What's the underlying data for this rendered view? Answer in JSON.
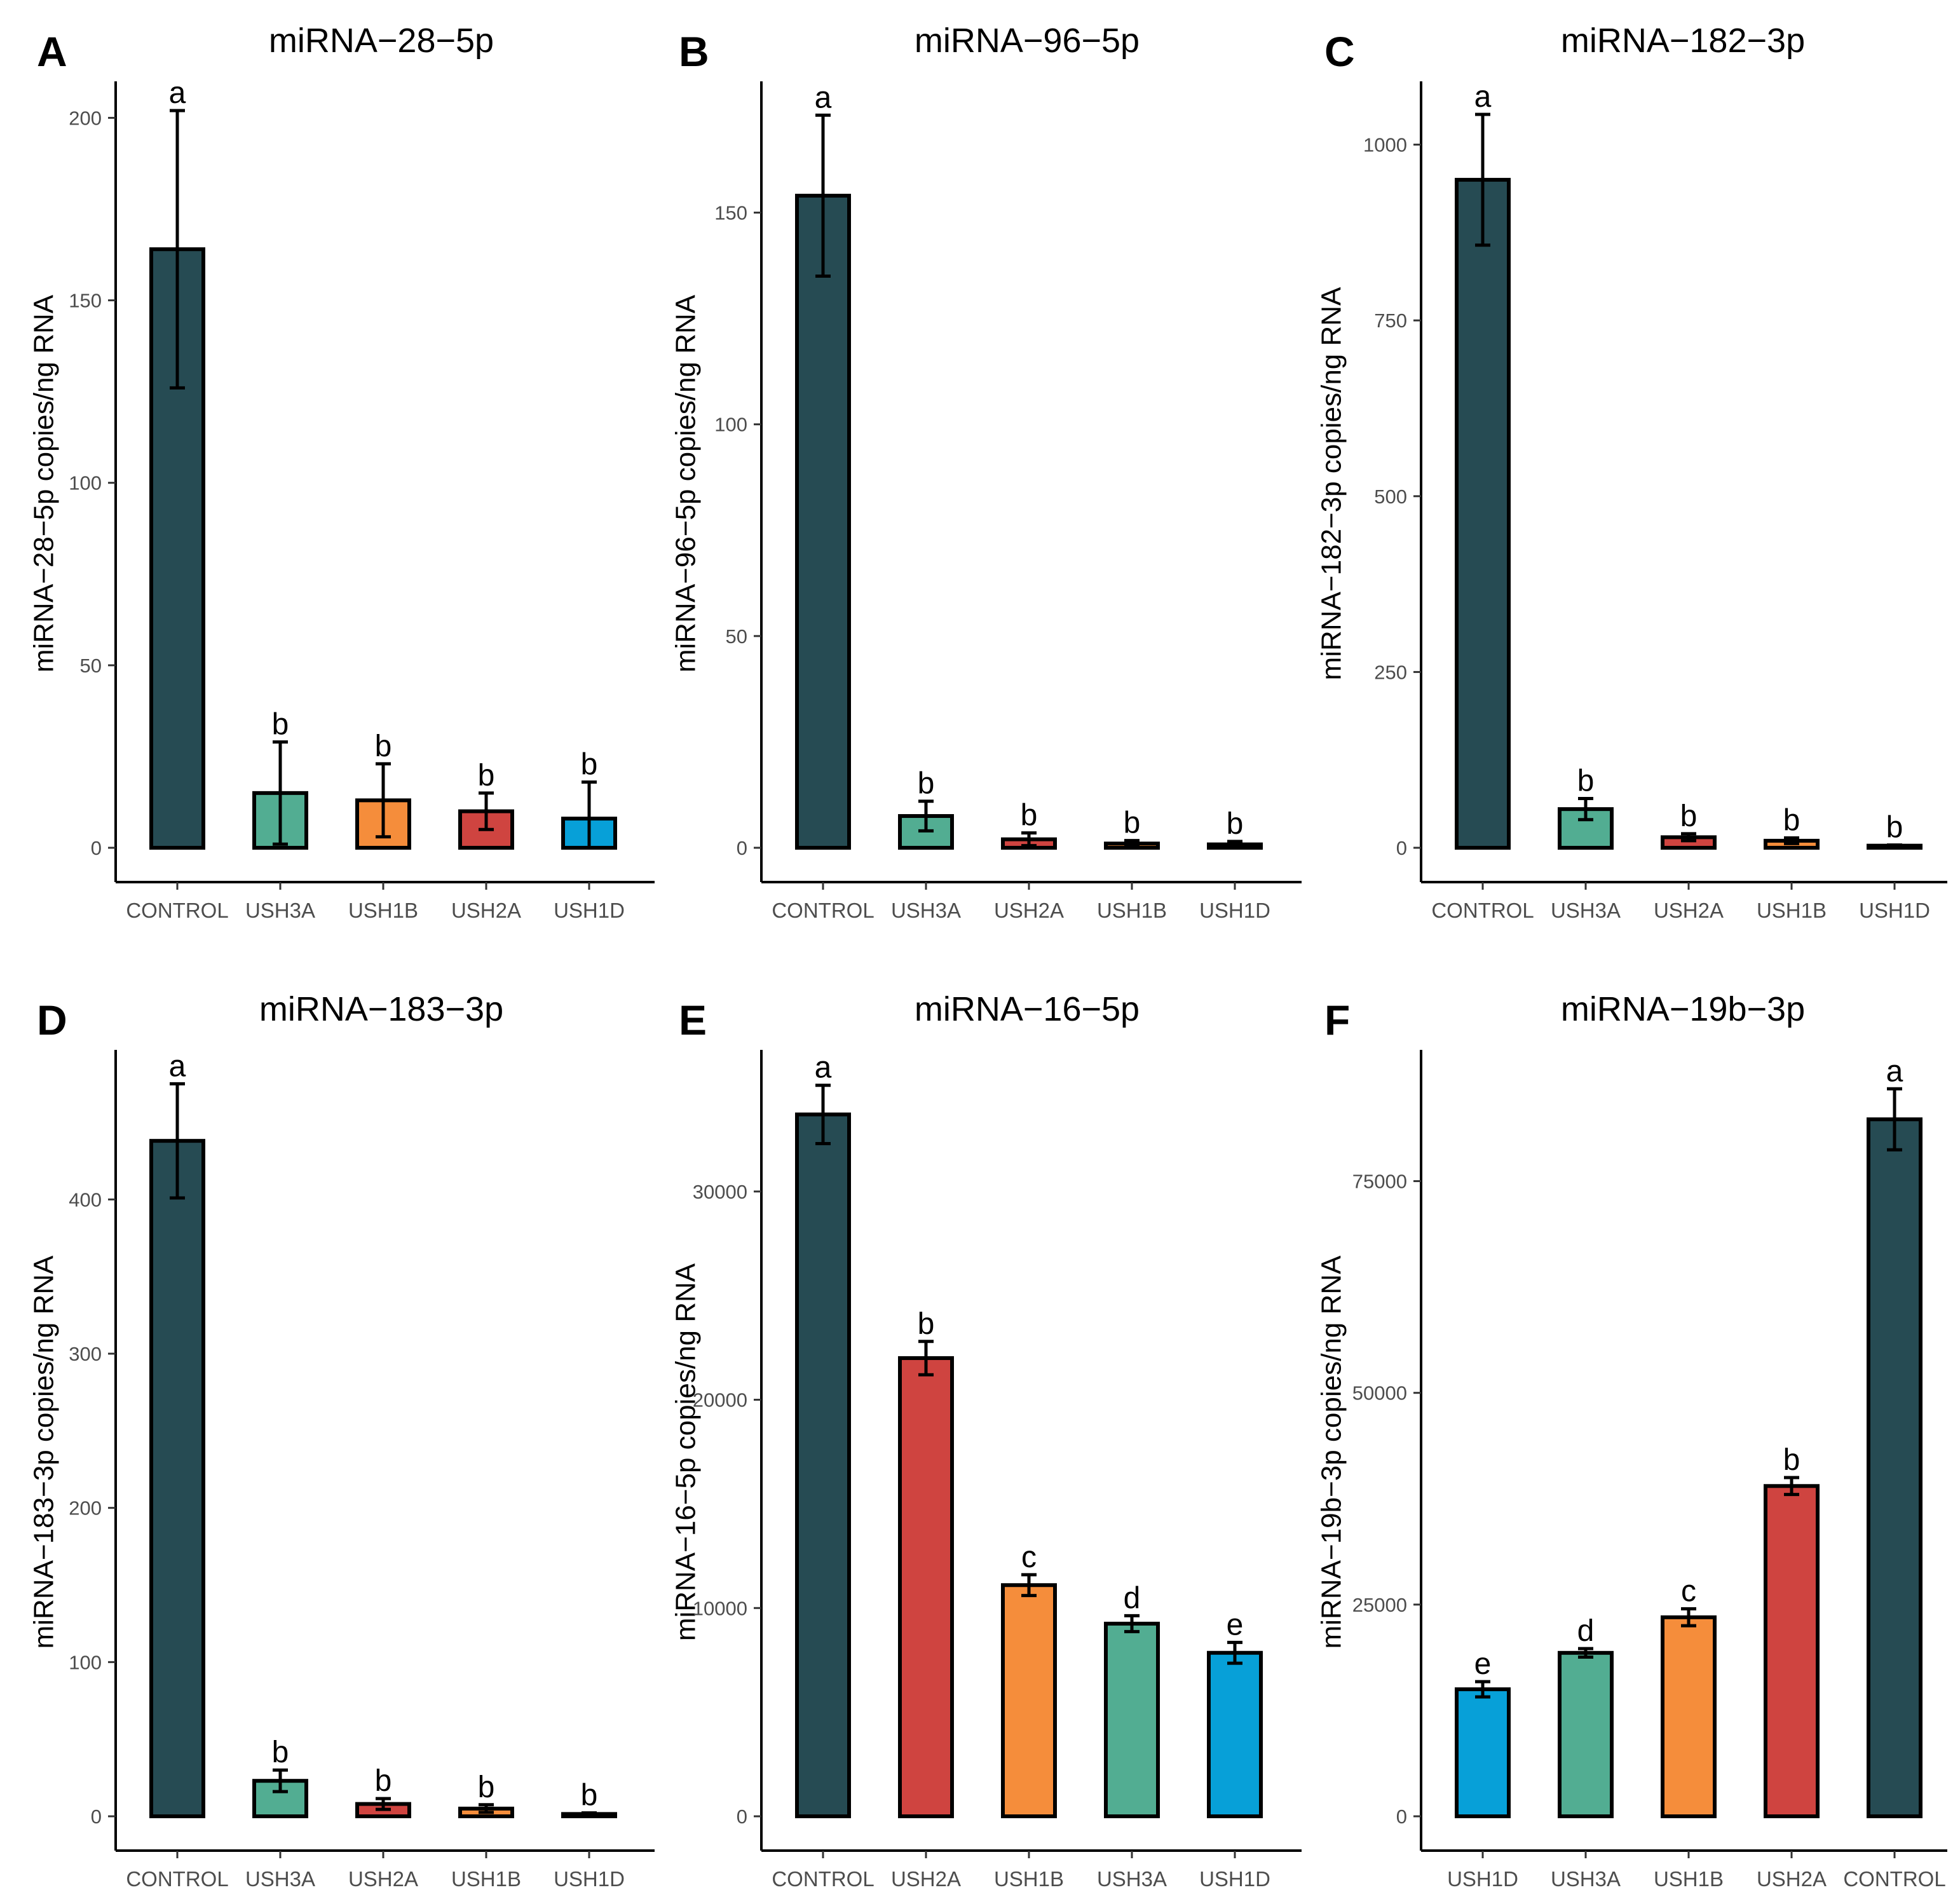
{
  "colors": {
    "CONTROL": "#264b53",
    "USH3A": "#52ad92",
    "USH1B": "#f58d3b",
    "USH2A": "#cf4440",
    "USH1D": "#07a0d8"
  },
  "chart_data": [
    {
      "type": "bar",
      "panel": "A",
      "title": "miRNA−28−5p",
      "xlabel": "",
      "ylabel": "miRNA−28−5p copies/ng RNA",
      "ylim": [
        0,
        210
      ],
      "yticks": [
        0,
        50,
        100,
        150,
        200
      ],
      "categories": [
        "CONTROL",
        "USH3A",
        "USH1B",
        "USH2A",
        "USH1D"
      ],
      "values": [
        164,
        15,
        13,
        10,
        8
      ],
      "errors": [
        38,
        14,
        10,
        5,
        10
      ],
      "sig_labels": [
        "a",
        "b",
        "b",
        "b",
        "b"
      ]
    },
    {
      "type": "bar",
      "panel": "B",
      "title": "miRNA−96−5p",
      "xlabel": "",
      "ylabel": "miRNA−96−5p copies/ng RNA",
      "ylim": [
        0,
        181
      ],
      "yticks": [
        0,
        50,
        100,
        150
      ],
      "categories": [
        "CONTROL",
        "USH3A",
        "USH2A",
        "USH1B",
        "USH1D"
      ],
      "values": [
        154,
        7.5,
        2,
        1,
        0.8
      ],
      "errors": [
        19,
        3.5,
        1.5,
        0.7,
        0.7
      ],
      "sig_labels": [
        "a",
        "b",
        "b",
        "b",
        "b"
      ]
    },
    {
      "type": "bar",
      "panel": "C",
      "title": "miRNA−182−3p",
      "xlabel": "",
      "ylabel": "miRNA−182−3p copies/ng RNA",
      "ylim": [
        0,
        1090
      ],
      "yticks": [
        0,
        250,
        500,
        750,
        1000
      ],
      "categories": [
        "CONTROL",
        "USH3A",
        "USH2A",
        "USH1B",
        "USH1D"
      ],
      "values": [
        950,
        55,
        15,
        10,
        3
      ],
      "errors": [
        93,
        15,
        5,
        4,
        1
      ],
      "sig_labels": [
        "a",
        "b",
        "b",
        "b",
        "b"
      ]
    },
    {
      "type": "bar",
      "panel": "D",
      "title": "miRNA−183−3p",
      "xlabel": "",
      "ylabel": "miRNA−183−3p copies/ng RNA",
      "ylim": [
        0,
        497
      ],
      "yticks": [
        0,
        100,
        200,
        300,
        400
      ],
      "categories": [
        "CONTROL",
        "USH3A",
        "USH2A",
        "USH1B",
        "USH1D"
      ],
      "values": [
        438,
        23,
        8,
        5,
        1.5
      ],
      "errors": [
        37,
        7,
        3.5,
        2.5,
        0.7
      ],
      "sig_labels": [
        "a",
        "b",
        "b",
        "b",
        "b"
      ]
    },
    {
      "type": "bar",
      "panel": "E",
      "title": "miRNA−16−5p",
      "xlabel": "",
      "ylabel": "miRNA−16−5p copies/ng RNA",
      "ylim": [
        0,
        36800
      ],
      "yticks": [
        0,
        10000,
        20000,
        30000
      ],
      "categories": [
        "CONTROL",
        "USH2A",
        "USH1B",
        "USH3A",
        "USH1D"
      ],
      "values": [
        33700,
        22000,
        11100,
        9250,
        7850
      ],
      "errors": [
        1400,
        800,
        500,
        380,
        500
      ],
      "sig_labels": [
        "a",
        "b",
        "c",
        "d",
        "e"
      ]
    },
    {
      "type": "bar",
      "panel": "F",
      "title": "miRNA−19b−3p",
      "xlabel": "",
      "ylabel": "miRNA−19b−3p copies/ng RNA",
      "ylim": [
        0,
        90500
      ],
      "yticks": [
        0,
        25000,
        50000,
        75000
      ],
      "categories": [
        "USH1D",
        "USH3A",
        "USH1B",
        "USH2A",
        "CONTROL"
      ],
      "values": [
        15000,
        19300,
        23500,
        39000,
        82300
      ],
      "errors": [
        900,
        500,
        1000,
        1000,
        3600
      ],
      "sig_labels": [
        "e",
        "d",
        "c",
        "b",
        "a"
      ]
    }
  ]
}
